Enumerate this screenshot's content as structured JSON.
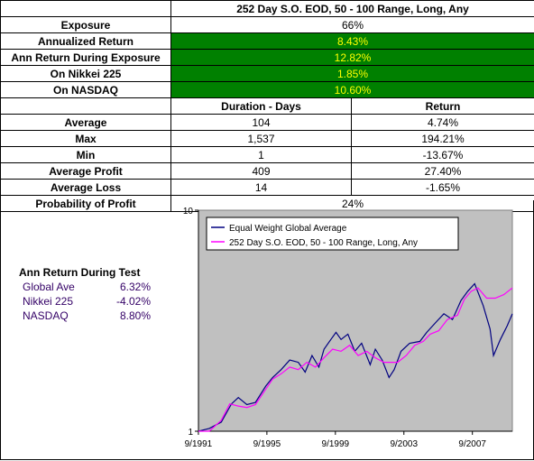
{
  "table": {
    "title": "252 Day S.O. EOD, 50 - 100 Range, Long, Any",
    "exposure": {
      "label": "Exposure",
      "value": "66%"
    },
    "highlight": [
      {
        "label": "Annualized Return",
        "value": "8.43%"
      },
      {
        "label": "Ann Return During Exposure",
        "value": "12.82%"
      },
      {
        "label": "On Nikkei 225",
        "value": "1.85%"
      },
      {
        "label": "On NASDAQ",
        "value": "10.60%"
      }
    ],
    "col_headers": {
      "duration": "Duration - Days",
      "return": "Return"
    },
    "stats": [
      {
        "label": "Average",
        "duration": "104",
        "return": "4.74%"
      },
      {
        "label": "Max",
        "duration": "1,537",
        "return": "194.21%"
      },
      {
        "label": "Min",
        "duration": "1",
        "return": "-13.67%"
      },
      {
        "label": "Average Profit",
        "duration": "409",
        "return": "27.40%"
      },
      {
        "label": "Average Loss",
        "duration": "14",
        "return": "-1.65%"
      }
    ],
    "probability": {
      "label": "Probability of Profit",
      "value": "24%"
    }
  },
  "summary": {
    "title": "Ann Return During Test",
    "rows": [
      {
        "name": "Global Ave",
        "value": "6.32%"
      },
      {
        "name": "Nikkei 225",
        "value": "-4.02%"
      },
      {
        "name": "NASDAQ",
        "value": "8.80%"
      }
    ]
  },
  "colors": {
    "highlight_bg": "#008000",
    "highlight_text": "#ffff00",
    "plot_bg": "#c0c0c0",
    "series1": "#000080",
    "series2": "#ff00ff"
  },
  "chart_data": {
    "type": "line",
    "title": "",
    "xlabel": "",
    "ylabel": "",
    "y_scale": "log",
    "ylim": [
      1,
      10
    ],
    "y_ticks": [
      "1",
      "10"
    ],
    "xlim": [
      1991.67,
      2010.0
    ],
    "x_ticks": [
      "9/1991",
      "9/1995",
      "9/1999",
      "9/2003",
      "9/2007"
    ],
    "grid": false,
    "legend_position": "top-left",
    "series": [
      {
        "name": "Equal Weight Global Average",
        "color": "#000080",
        "x": [
          1991.67,
          1992.3,
          1993.0,
          1993.6,
          1994.0,
          1994.5,
          1995.0,
          1995.6,
          1996.0,
          1996.5,
          1997.0,
          1997.5,
          1997.9,
          1998.3,
          1998.7,
          1999.0,
          1999.4,
          1999.7,
          2000.0,
          2000.4,
          2000.8,
          2001.2,
          2001.7,
          2002.0,
          2002.4,
          2002.8,
          2003.1,
          2003.5,
          2004.0,
          2004.6,
          2005.0,
          2005.6,
          2006.0,
          2006.5,
          2007.0,
          2007.4,
          2007.8,
          2008.3,
          2008.7,
          2008.9,
          2009.3,
          2009.7,
          2010.0
        ],
        "values": [
          1.0,
          1.03,
          1.1,
          1.33,
          1.42,
          1.32,
          1.35,
          1.6,
          1.75,
          1.9,
          2.1,
          2.05,
          1.85,
          2.2,
          1.95,
          2.35,
          2.6,
          2.8,
          2.6,
          2.75,
          2.3,
          2.5,
          2.0,
          2.35,
          2.1,
          1.75,
          1.9,
          2.3,
          2.5,
          2.55,
          2.8,
          3.15,
          3.4,
          3.2,
          3.9,
          4.3,
          4.65,
          3.7,
          2.9,
          2.2,
          2.6,
          3.0,
          3.4
        ]
      },
      {
        "name": "252 Day S.O. EOD, 50 - 100 Range, Long, Any",
        "color": "#ff00ff",
        "x": [
          1991.67,
          1992.3,
          1993.0,
          1993.5,
          1994.0,
          1994.5,
          1995.0,
          1995.6,
          1996.0,
          1996.5,
          1997.0,
          1997.5,
          1998.0,
          1998.5,
          1999.0,
          1999.5,
          2000.0,
          2000.5,
          2001.0,
          2001.5,
          2002.0,
          2002.5,
          2003.0,
          2003.3,
          2003.8,
          2004.3,
          2004.8,
          2005.2,
          2005.7,
          2006.2,
          2006.8,
          2007.2,
          2007.6,
          2008.0,
          2008.5,
          2009.0,
          2009.5,
          2010.0
        ],
        "values": [
          1.0,
          1.0,
          1.12,
          1.33,
          1.3,
          1.28,
          1.32,
          1.55,
          1.72,
          1.82,
          1.95,
          1.9,
          2.05,
          1.95,
          2.15,
          2.35,
          2.3,
          2.45,
          2.2,
          2.3,
          2.15,
          2.05,
          2.05,
          2.05,
          2.2,
          2.45,
          2.55,
          2.75,
          2.85,
          3.2,
          3.35,
          3.95,
          4.3,
          4.45,
          4.0,
          4.0,
          4.15,
          4.45
        ]
      }
    ]
  }
}
